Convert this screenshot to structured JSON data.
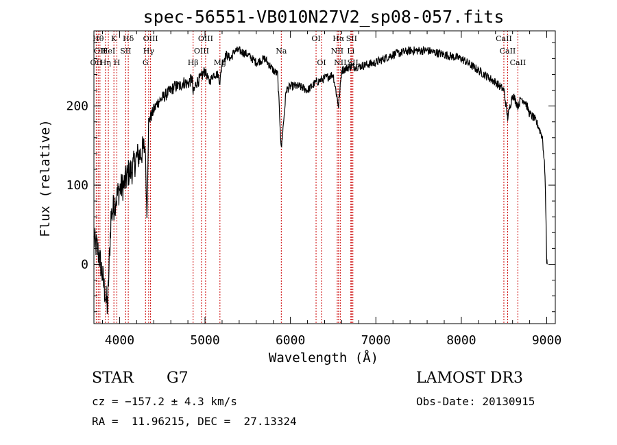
{
  "chart_data": {
    "type": "line",
    "title": "spec-56551-VB010N27V2_sp08-057.fits",
    "xlabel": "Wavelength (Å)",
    "ylabel": "Flux (relative)",
    "xlim": [
      3700,
      9100
    ],
    "ylim": [
      -75,
      295
    ],
    "xticks": [
      4000,
      5000,
      6000,
      7000,
      8000,
      9000
    ],
    "yticks": [
      0,
      100,
      200
    ],
    "grid": false,
    "series": [
      {
        "name": "spectrum",
        "x": [
          3700,
          3740,
          3780,
          3820,
          3860,
          3900,
          3950,
          4000,
          4050,
          4100,
          4150,
          4200,
          4250,
          4300,
          4320,
          4340,
          4400,
          4450,
          4500,
          4550,
          4600,
          4650,
          4700,
          4750,
          4800,
          4850,
          4861,
          4900,
          4950,
          5000,
          5050,
          5100,
          5150,
          5175,
          5200,
          5250,
          5300,
          5350,
          5400,
          5500,
          5600,
          5700,
          5800,
          5850,
          5893,
          5950,
          6000,
          6100,
          6200,
          6300,
          6400,
          6500,
          6563,
          6600,
          6700,
          6800,
          7000,
          7200,
          7400,
          7600,
          7800,
          8000,
          8200,
          8400,
          8500,
          8542,
          8600,
          8662,
          8700,
          8750,
          8800,
          8850,
          8900,
          8950,
          8980,
          9000,
          9005
        ],
        "y": [
          30,
          20,
          0,
          -30,
          -55,
          60,
          80,
          95,
          100,
          115,
          120,
          135,
          140,
          150,
          60,
          180,
          195,
          205,
          210,
          215,
          220,
          225,
          225,
          230,
          228,
          235,
          215,
          230,
          235,
          245,
          230,
          240,
          240,
          230,
          255,
          265,
          260,
          270,
          270,
          265,
          255,
          260,
          245,
          240,
          145,
          220,
          225,
          225,
          220,
          230,
          235,
          240,
          200,
          245,
          250,
          250,
          255,
          265,
          270,
          270,
          265,
          260,
          245,
          230,
          220,
          185,
          215,
          200,
          210,
          205,
          190,
          185,
          175,
          160,
          115,
          5,
          0
        ]
      }
    ],
    "lines": [
      {
        "wl": 3727,
        "label": "OII",
        "row": 2
      },
      {
        "wl": 3750,
        "label": "Hθ",
        "row": 0
      },
      {
        "wl": 3771,
        "label": "OII",
        "row": 1
      },
      {
        "wl": 3835,
        "label": "Hη",
        "row": 2
      },
      {
        "wl": 3869,
        "label": "HeI",
        "row": 1
      },
      {
        "wl": 3934,
        "label": "K",
        "row": 0
      },
      {
        "wl": 3969,
        "label": "H",
        "row": 2
      },
      {
        "wl": 4072,
        "label": "SII",
        "row": 1
      },
      {
        "wl": 4102,
        "label": "Hδ",
        "row": 0
      },
      {
        "wl": 4304,
        "label": "G",
        "row": 2
      },
      {
        "wl": 4341,
        "label": "Hγ",
        "row": 1
      },
      {
        "wl": 4363,
        "label": "OIII",
        "row": 0
      },
      {
        "wl": 4861,
        "label": "Hβ",
        "row": 2
      },
      {
        "wl": 4959,
        "label": "OIII",
        "row": 1
      },
      {
        "wl": 5007,
        "label": "OIII",
        "row": 0
      },
      {
        "wl": 5175,
        "label": "Mg",
        "row": 2
      },
      {
        "wl": 5893,
        "label": "Na",
        "row": 1
      },
      {
        "wl": 6300,
        "label": "OI",
        "row": 0
      },
      {
        "wl": 6364,
        "label": "OI",
        "row": 2
      },
      {
        "wl": 6548,
        "label": "NII",
        "row": 1
      },
      {
        "wl": 6563,
        "label": "Hα",
        "row": 0
      },
      {
        "wl": 6583,
        "label": "NII",
        "row": 2
      },
      {
        "wl": 6707,
        "label": "Li",
        "row": 1
      },
      {
        "wl": 6716,
        "label": "SII",
        "row": 0
      },
      {
        "wl": 6731,
        "label": "SII",
        "row": 2
      },
      {
        "wl": 8498,
        "label": "CaII",
        "row": 0
      },
      {
        "wl": 8542,
        "label": "CaII",
        "row": 1
      },
      {
        "wl": 8662,
        "label": "CaII",
        "row": 2
      }
    ]
  },
  "info": {
    "object_class": "STAR",
    "subclass": "G7",
    "survey": "LAMOST DR3",
    "redshift": "cz = −157.2 ± 4.3 km/s",
    "obs_date": "Obs-Date: 20130915",
    "coords": "RA =  11.96215, DEC =  27.13324"
  }
}
